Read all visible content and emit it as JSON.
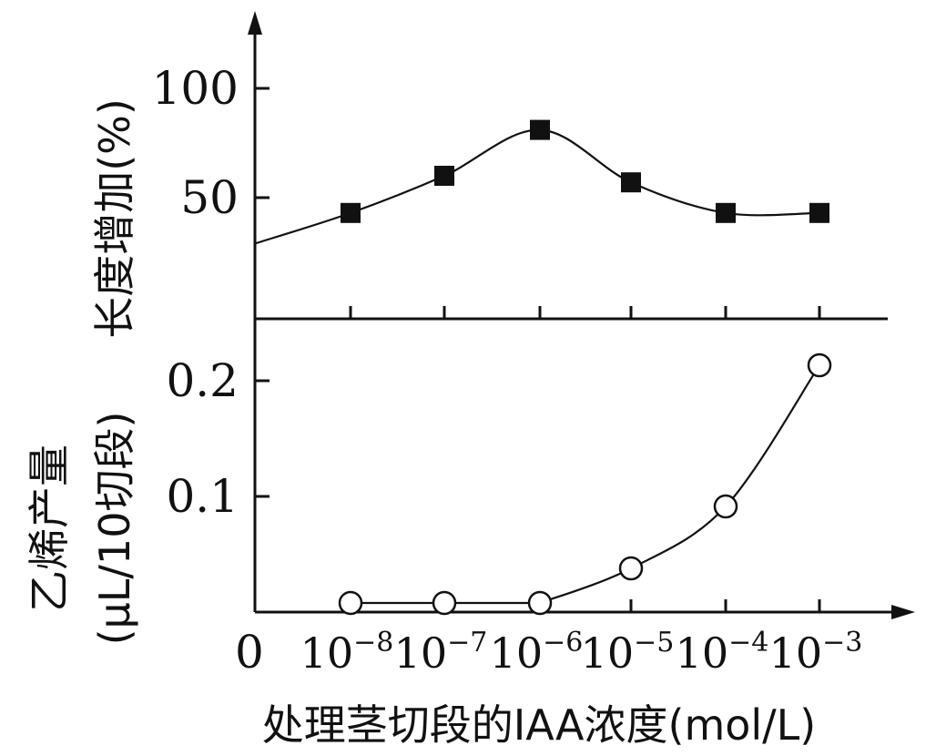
{
  "chart_data": {
    "x": {
      "label": "处理茎切段的IAA浓度(mol/L)",
      "origin_label": "0",
      "ticks": [
        {
          "base": "10",
          "exp": "−8"
        },
        {
          "base": "10",
          "exp": "−7"
        },
        {
          "base": "10",
          "exp": "−6"
        },
        {
          "base": "10",
          "exp": "−5"
        },
        {
          "base": "10",
          "exp": "−4"
        },
        {
          "base": "10",
          "exp": "−3"
        }
      ],
      "values": [
        1e-08,
        1e-07,
        1e-06,
        1e-05,
        0.0001,
        0.001
      ],
      "scale": "log"
    },
    "panels": [
      {
        "type": "line",
        "ylabel": "长度增加(%)",
        "yticks": [
          "50",
          "100"
        ],
        "ylim": [
          0,
          120
        ],
        "marker": "filled-square",
        "start_value": 29,
        "values": [
          43,
          60,
          81,
          57,
          43,
          43
        ]
      },
      {
        "type": "line",
        "ylabel": "乙烯产量",
        "ylabel2": "(μL/10切段)",
        "yticks": [
          "0.1",
          "0.2"
        ],
        "ylim": [
          0,
          0.24
        ],
        "marker": "open-circle",
        "values": [
          0.0,
          0.0,
          0.0,
          0.035,
          0.09,
          0.21
        ]
      }
    ]
  }
}
